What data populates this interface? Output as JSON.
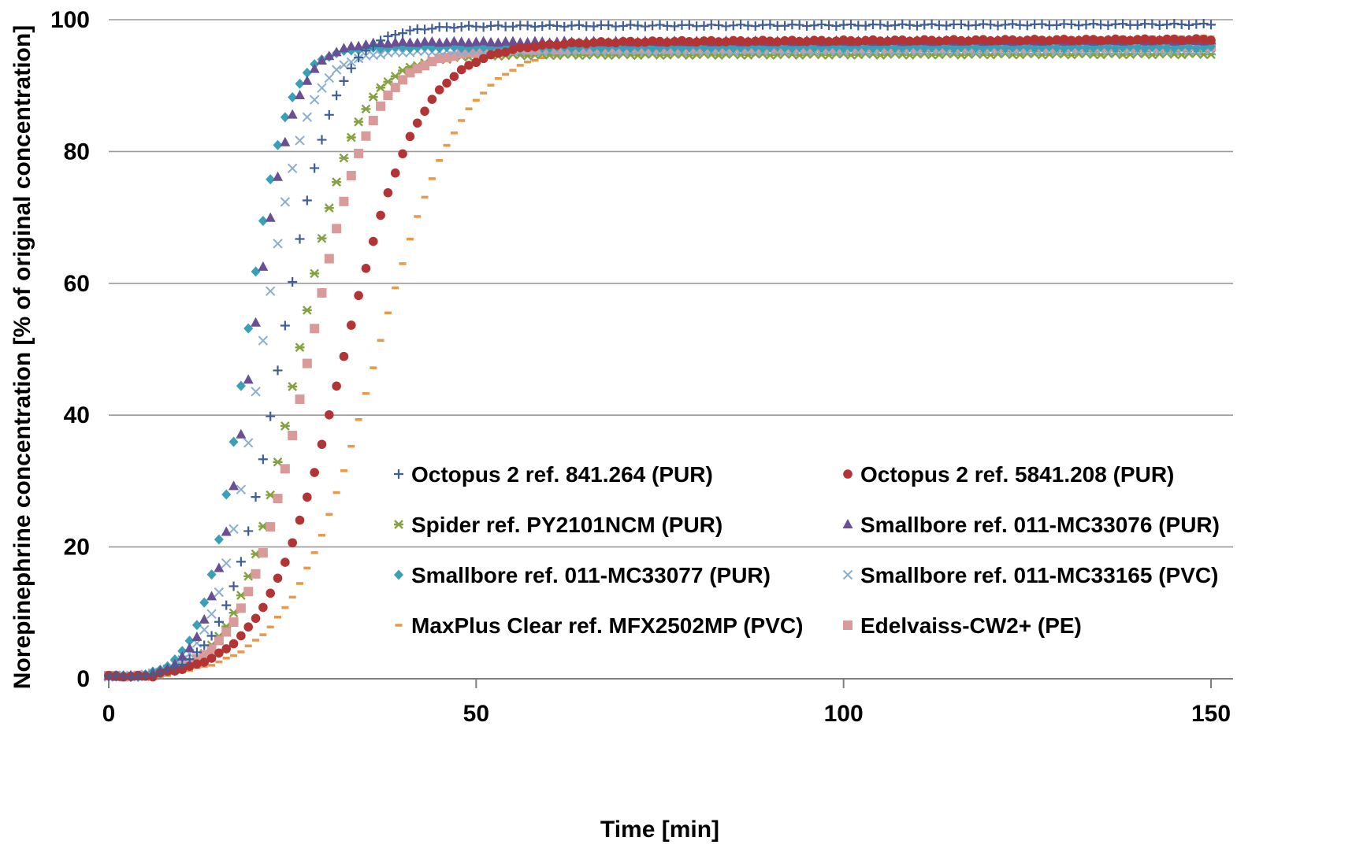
{
  "chart_data": {
    "type": "scatter",
    "xlabel": "Time [min]",
    "ylabel": "Norepinephrine concentration [% of original concentration]",
    "xlim": [
      0,
      150
    ],
    "ylim": [
      0,
      100
    ],
    "x_ticks": [
      "0",
      "50",
      "100",
      "150"
    ],
    "y_ticks": [
      "0",
      "20",
      "40",
      "60",
      "80",
      "100"
    ],
    "grid": "horizontal",
    "legend_placement": "bottom-right, two columns",
    "series": [
      {
        "name": "Octopus 2 ref. 841.264 (PUR)",
        "marker": "plus",
        "color": "#3f5e96",
        "model": {
          "t0": 8.5,
          "k": 0.28,
          "plateau": 98.9,
          "late_plateau": 99.3
        },
        "x": [
          8,
          10,
          12,
          14,
          16,
          18,
          20,
          22,
          24,
          26,
          28,
          30,
          35,
          40
        ],
        "y": [
          1.0,
          4.0,
          12.0,
          20.5,
          41.5,
          62.5,
          78.0,
          88.5,
          93.8,
          96.3,
          97.6,
          98.3,
          98.7,
          98.9
        ]
      },
      {
        "name": "Octopus 2 ref. 5841.208 (PUR)",
        "marker": "circle",
        "color": "#b23434",
        "model": {
          "t0": 10.0,
          "k": 0.19,
          "plateau": 96.4,
          "late_plateau": 97.0
        },
        "x": [
          10,
          12,
          14,
          16,
          18,
          20,
          22,
          24,
          26,
          28,
          30,
          35,
          40
        ],
        "y": [
          1.0,
          6.0,
          18.5,
          36.5,
          55.0,
          70.5,
          81.5,
          88.0,
          91.8,
          94.0,
          95.2,
          96.0,
          96.3
        ]
      },
      {
        "name": "Spider ref. PY2101NCM (PUR)",
        "marker": "star",
        "color": "#86a142",
        "model": {
          "t0": 9.0,
          "k": 0.25,
          "plateau": 94.6,
          "late_plateau": 94.8
        },
        "x": [
          9,
          11,
          13,
          15,
          17,
          19,
          21,
          23,
          25,
          27,
          30,
          35
        ],
        "y": [
          1.0,
          10.0,
          28.0,
          50.0,
          68.0,
          79.5,
          86.5,
          90.5,
          92.5,
          93.6,
          94.3,
          94.6
        ]
      },
      {
        "name": "Smallbore ref. 011-MC33076 (PUR)",
        "marker": "triangle",
        "color": "#6a4f95",
        "model": {
          "t0": 7.8,
          "k": 0.36,
          "plateau": 96.5,
          "late_plateau": 96.8
        },
        "x": [
          8,
          10,
          12,
          14,
          16,
          18,
          20,
          22,
          25,
          30
        ],
        "y": [
          2.5,
          21.0,
          51.0,
          74.5,
          87.5,
          93.0,
          95.2,
          96.0,
          96.3,
          96.5
        ]
      },
      {
        "name": "Smallbore ref. 011-MC33077 (PUR)",
        "marker": "diamond",
        "color": "#3aa0b8",
        "model": {
          "t0": 7.2,
          "k": 0.37,
          "plateau": 95.8,
          "late_plateau": 95.8
        },
        "x": [
          7,
          9,
          11,
          13,
          15,
          17,
          19,
          21,
          25,
          30
        ],
        "y": [
          3.5,
          20.0,
          47.0,
          70.0,
          84.0,
          90.5,
          93.5,
          94.8,
          95.5,
          95.8
        ]
      },
      {
        "name": "Smallbore ref. 011-MC33165 (PVC)",
        "marker": "x",
        "color": "#8aaed0",
        "model": {
          "t0": 8.0,
          "k": 0.33,
          "plateau": 95.2,
          "late_plateau": 95.3
        },
        "x": [
          8,
          10,
          12,
          14,
          16,
          18,
          20,
          22,
          25,
          30
        ],
        "y": [
          4.5,
          22.5,
          48.0,
          70.5,
          84.0,
          90.5,
          93.0,
          94.2,
          94.8,
          95.2
        ]
      },
      {
        "name": "MaxPlus Clear ref. MFX2502MP (PVC)",
        "marker": "dash",
        "color": "#e49b4c",
        "model": {
          "t0": 11.8,
          "k": 0.17,
          "plateau": 95.5,
          "late_plateau": 97.4
        },
        "x": [
          12,
          14,
          16,
          18,
          20,
          22,
          24,
          26,
          28,
          30,
          32,
          35,
          40
        ],
        "y": [
          1.0,
          10.0,
          23.0,
          38.0,
          54.0,
          67.5,
          76.5,
          83.5,
          88.5,
          91.5,
          93.5,
          94.8,
          95.5
        ]
      },
      {
        "name": "Edelvaiss-CW2+ (PE)",
        "marker": "square",
        "color": "#d99a9a",
        "model": {
          "t0": 9.0,
          "k": 0.23,
          "plateau": 95.3,
          "late_plateau": 96.0
        },
        "x": [
          9,
          11,
          13,
          15,
          17,
          19,
          21,
          23,
          25,
          28,
          32,
          40
        ],
        "y": [
          4.0,
          17.5,
          37.5,
          56.5,
          71.5,
          81.0,
          86.5,
          90.0,
          92.0,
          93.6,
          94.6,
          95.2
        ]
      }
    ]
  }
}
